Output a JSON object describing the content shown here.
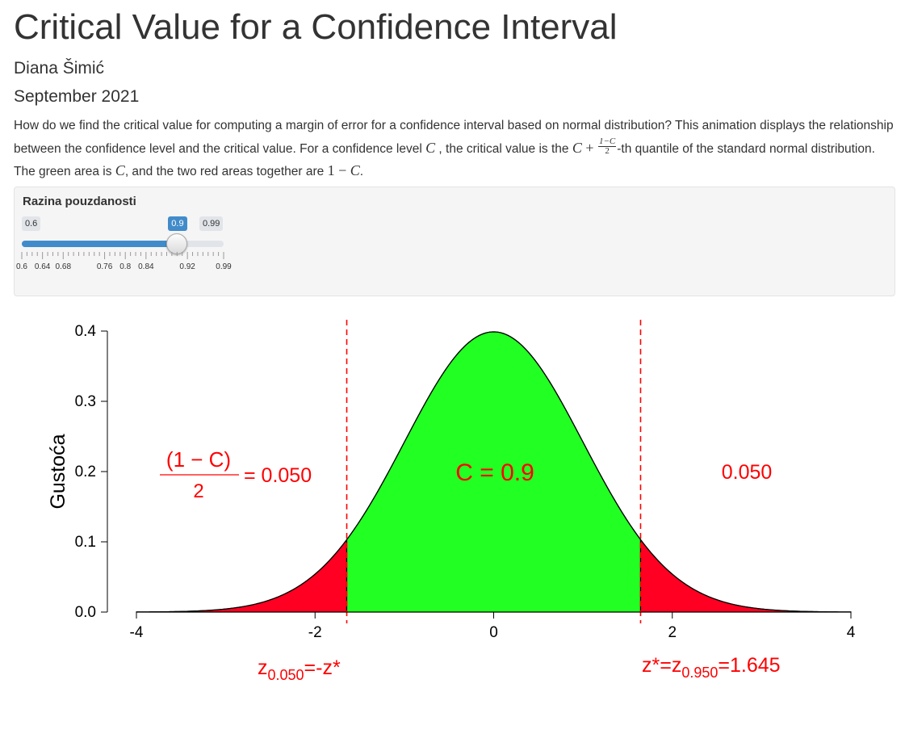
{
  "header": {
    "title": "Critical Value for a Confidence Interval",
    "author": "Diana Šimić",
    "date": "September 2021"
  },
  "intro": {
    "p1": "How do we find the critical value for computing a margin of error for a confidence interval based on normal distribution? This animation displays the relationship between the confidence level and the critical value. For a confidence level ",
    "p2": " , the critical value is the ",
    "p3": "-th quantile of the standard normal distribution. The green area is ",
    "p4": ", and the two red areas together are ",
    "p5": ".",
    "var_c": "C",
    "plus": " + ",
    "frac_num": "1−C",
    "frac_den": "2",
    "one_minus": "1 − ",
    "period_c": "C"
  },
  "slider": {
    "label": "Razina pouzdanosti",
    "min": 0.6,
    "max": 0.99,
    "value": 0.9,
    "min_label": "0.6",
    "max_label": "0.99",
    "value_label": "0.9",
    "tick_labels": [
      "0.6",
      "0.64",
      "0.68",
      "0.76",
      "0.8",
      "0.84",
      "0.92",
      "0.99"
    ],
    "accent": "#428bca"
  },
  "chart_data": {
    "type": "area",
    "function": "standard normal density",
    "x_range": [
      -4,
      4
    ],
    "ylim": [
      0,
      0.4
    ],
    "x_ticks": [
      "-4",
      "-2",
      "0",
      "2",
      "4"
    ],
    "y_ticks": [
      "0.0",
      "0.1",
      "0.2",
      "0.3",
      "0.4"
    ],
    "ylabel": "Gustoća",
    "xlabel": "",
    "confidence": 0.9,
    "critical_value": 1.645,
    "regions": [
      {
        "name": "left-tail",
        "from": -4,
        "to": -1.645,
        "color": "#ff0022"
      },
      {
        "name": "center",
        "from": -1.645,
        "to": 1.645,
        "color": "#22ff22"
      },
      {
        "name": "right-tail",
        "from": 1.645,
        "to": 4,
        "color": "#ff0022"
      }
    ],
    "vlines": [
      -1.645,
      1.645
    ],
    "annotations": {
      "left_frac_num": "(1 − C)",
      "left_frac_den": "2",
      "left_value": "= 0.050",
      "center": "C =  0.9",
      "right_value": "0.050",
      "left_z": "z₀.₀₅₀=-z*",
      "right_z_prefix": "z*=z",
      "right_z_sub": "0.950",
      "right_z_suffix": "=1.645",
      "left_z_base": "z",
      "left_z_sub": "0.050",
      "left_z_suffix": "=-z*"
    },
    "annotation_color": "#ff0000"
  }
}
